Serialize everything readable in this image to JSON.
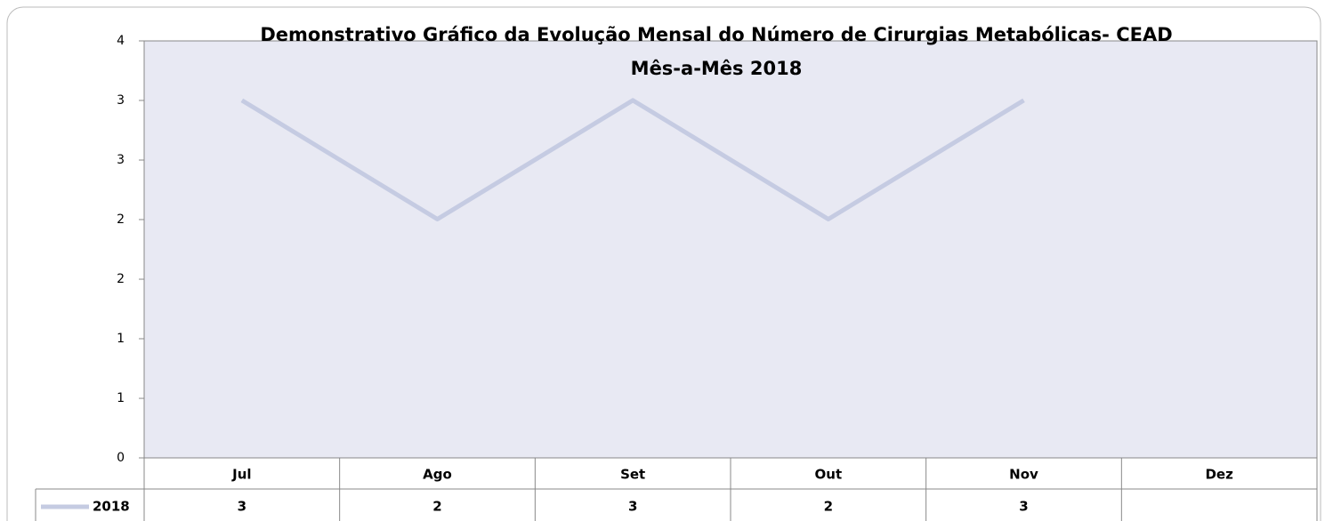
{
  "chart_data": {
    "type": "line",
    "title": "Demonstrativo Gráfico da Evolução Mensal do Número de Cirurgias Metabólicas- CEAD",
    "subtitle": "Mês-a-Mês 2018",
    "categories": [
      "Jul",
      "Ago",
      "Set",
      "Out",
      "Nov",
      "Dez"
    ],
    "series": [
      {
        "name": "2018",
        "color": "#c5cbe2",
        "values": [
          3.43,
          2.29,
          3.43,
          2.29,
          3.43,
          null
        ],
        "value_labels": [
          "3",
          "2",
          "3",
          "2",
          "3",
          null
        ]
      }
    ],
    "ylim": [
      0,
      4
    ],
    "yticks": [
      0,
      {
        "value": 0.571,
        "label": "1"
      },
      {
        "value": 1.143,
        "label": "1"
      },
      {
        "value": 1.714,
        "label": "2"
      },
      {
        "value": 2.286,
        "label": "2"
      },
      {
        "value": 2.857,
        "label": "3"
      },
      {
        "value": 3.429,
        "label": "3"
      },
      4
    ],
    "plot_background": "#e8e9f3"
  }
}
